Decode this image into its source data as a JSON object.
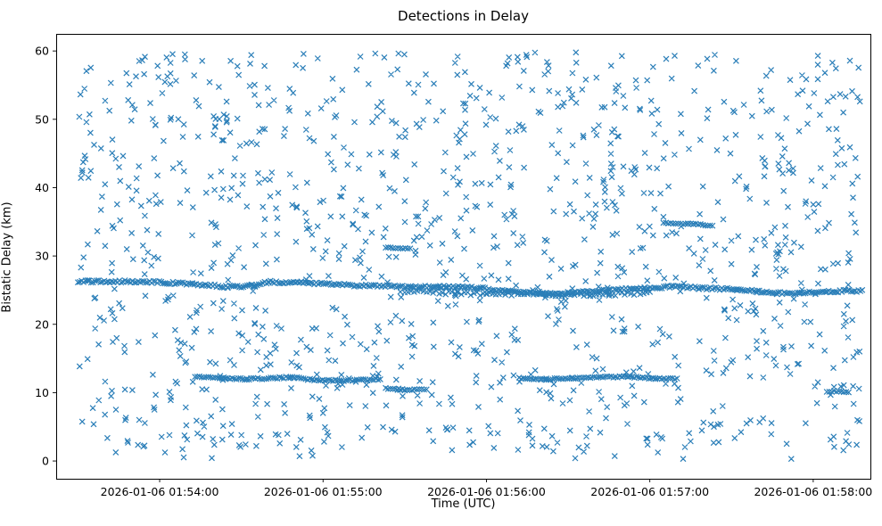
{
  "chart_data": {
    "type": "scatter",
    "title": "Detections in Delay",
    "xlabel": "Time (UTC)",
    "ylabel": "Bistatic Delay (km)",
    "marker": "x",
    "marker_color": "#1f77b4",
    "legend": "none",
    "grid": false,
    "x_axis": {
      "unit": "seconds since 2026-01-06 01:53:00 UTC",
      "min": 22,
      "max": 321,
      "ticks": [
        {
          "value": 60,
          "label": "2026-01-06 01:54:00"
        },
        {
          "value": 120,
          "label": "2026-01-06 01:55:00"
        },
        {
          "value": 180,
          "label": "2026-01-06 01:56:00"
        },
        {
          "value": 240,
          "label": "2026-01-06 01:57:00"
        },
        {
          "value": 300,
          "label": "2026-01-06 01:58:00"
        }
      ]
    },
    "y_axis": {
      "min": -2.6,
      "max": 62.5,
      "ticks": [
        0,
        10,
        20,
        30,
        40,
        50,
        60
      ]
    },
    "noise_cloud": {
      "description": "uniform clutter detections spanning full time and delay range",
      "count": 1250,
      "t_range": [
        30,
        318
      ],
      "y_range": [
        0.3,
        59.8
      ],
      "seed": 42
    },
    "tracks": [
      {
        "name": "main-track-~25km",
        "step": 0.7,
        "jitter": 0.18,
        "polyline": [
          [
            30,
            26.3
          ],
          [
            50,
            26.25
          ],
          [
            62,
            26.1
          ],
          [
            72,
            25.9
          ],
          [
            85,
            25.5
          ],
          [
            95,
            25.6
          ],
          [
            100,
            26.2
          ],
          [
            112,
            26.1
          ],
          [
            125,
            25.8
          ],
          [
            140,
            25.6
          ],
          [
            152,
            25.5
          ],
          [
            165,
            25.5
          ],
          [
            178,
            25.3
          ],
          [
            188,
            24.8
          ],
          [
            200,
            24.5
          ],
          [
            212,
            24.6
          ],
          [
            225,
            25.0
          ],
          [
            238,
            25.3
          ],
          [
            248,
            25.5
          ],
          [
            258,
            25.3
          ],
          [
            272,
            25.1
          ],
          [
            285,
            24.6
          ],
          [
            295,
            24.5
          ],
          [
            305,
            24.8
          ],
          [
            318,
            24.9
          ]
        ]
      },
      {
        "name": "secondary-band-~24.5km",
        "step": 1.2,
        "jitter": 0.25,
        "polyline": [
          [
            150,
            24.9
          ],
          [
            165,
            24.6
          ],
          [
            180,
            24.4
          ],
          [
            195,
            24.5
          ],
          [
            210,
            24.3
          ],
          [
            225,
            24.4
          ],
          [
            240,
            24.6
          ]
        ]
      },
      {
        "name": "low-track-a-~12km",
        "step": 0.8,
        "jitter": 0.12,
        "polyline": [
          [
            73,
            12.35
          ],
          [
            82,
            12.15
          ],
          [
            92,
            12.0
          ],
          [
            100,
            12.1
          ],
          [
            108,
            12.25
          ],
          [
            116,
            11.9
          ],
          [
            126,
            11.75
          ],
          [
            134,
            11.85
          ],
          [
            141,
            11.95
          ]
        ]
      },
      {
        "name": "low-track-a-tail-~10.5km",
        "step": 0.9,
        "jitter": 0.1,
        "polyline": [
          [
            143,
            10.6
          ],
          [
            150,
            10.4
          ],
          [
            158,
            10.5
          ]
        ]
      },
      {
        "name": "low-track-b-~12km",
        "step": 0.8,
        "jitter": 0.12,
        "polyline": [
          [
            192,
            12.1
          ],
          [
            202,
            11.95
          ],
          [
            212,
            12.1
          ],
          [
            222,
            12.35
          ],
          [
            232,
            12.3
          ],
          [
            242,
            12.1
          ],
          [
            250,
            12.0
          ]
        ]
      },
      {
        "name": "mid-dash-~31km",
        "step": 0.9,
        "jitter": 0.08,
        "polyline": [
          [
            143,
            31.2
          ],
          [
            152,
            31.1
          ]
        ]
      },
      {
        "name": "upper-dash-~34.7km",
        "step": 0.9,
        "jitter": 0.08,
        "polyline": [
          [
            245,
            34.8
          ],
          [
            254,
            34.7
          ],
          [
            256,
            34.7
          ],
          [
            263,
            34.4
          ]
        ]
      },
      {
        "name": "low-dash-right-~10km",
        "step": 0.9,
        "jitter": 0.1,
        "polyline": [
          [
            305,
            10.2
          ],
          [
            313,
            10.1
          ]
        ]
      }
    ]
  }
}
